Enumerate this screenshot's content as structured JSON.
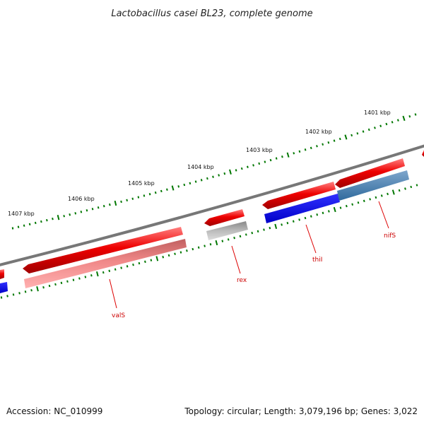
{
  "title": "Lactobacillus casei BL23, complete genome",
  "scale_labels": [
    "1401 kbp",
    "1402 kbp",
    "1403 kbp",
    "1404 kbp",
    "1405 kbp",
    "1406 kbp",
    "1407 kbp"
  ],
  "genes": [
    {
      "name": "valS"
    },
    {
      "name": "rex"
    },
    {
      "name": "thiI"
    },
    {
      "name": "nifS"
    }
  ],
  "footer": {
    "accession": "Accession: NC_010999",
    "summary": "Topology: circular; Length: 3,079,196 bp; Genes: 3,022"
  },
  "colors": {
    "forward_strand": "#ee0000",
    "reverse_strand": "#0000ee",
    "backbone": "#808080",
    "ticks": "#007700",
    "label": "#cc0000"
  }
}
